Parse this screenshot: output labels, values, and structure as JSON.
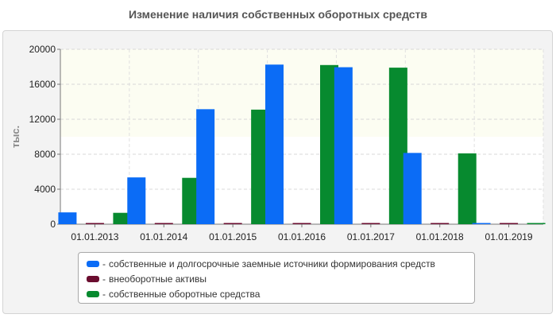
{
  "chart_data": {
    "type": "bar",
    "title": "Изменение наличия собственных оборотных средств",
    "ylabel": "тыс.",
    "xlabel": "",
    "ylim": [
      0,
      20000
    ],
    "yticks": [
      0,
      4000,
      8000,
      12000,
      16000,
      20000
    ],
    "grid": true,
    "legend_position": "bottom",
    "categories": [
      "01.01.2013",
      "01.01.2014",
      "01.01.2015",
      "01.01.2016",
      "01.01.2017",
      "01.01.2018",
      "01.01.2019"
    ],
    "series": [
      {
        "name": "собственные и долгосрочные заемные источники формирования средств",
        "color": "#0b6cf6",
        "values": [
          1350,
          5350,
          13150,
          18250,
          17950,
          8150,
          60
        ]
      },
      {
        "name": "внеоборотные активы",
        "color": "#6b0d2f",
        "values": [
          50,
          50,
          50,
          50,
          50,
          50,
          50
        ]
      },
      {
        "name": "собственные оборотные средства",
        "color": "#078a2f",
        "values": [
          1300,
          5300,
          13100,
          18200,
          17900,
          8100,
          10
        ]
      }
    ]
  }
}
